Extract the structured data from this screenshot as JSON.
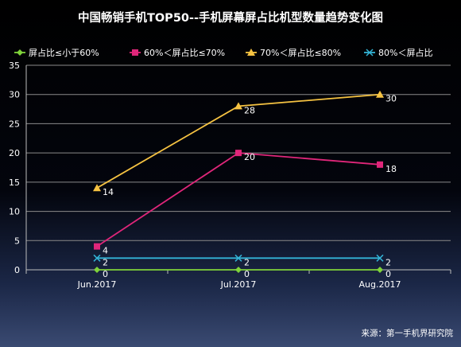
{
  "chart_data": {
    "type": "line",
    "title": "中国畅销手机TOP50--手机屏幕屏占比机型数量趋势变化图",
    "categories": [
      "Jun.2017",
      "Jul.2017",
      "Aug.2017"
    ],
    "ylim": [
      0,
      35
    ],
    "yticks": [
      0,
      5,
      10,
      15,
      20,
      25,
      30,
      35
    ],
    "grid": true,
    "legend_position": "top",
    "series": [
      {
        "name": "屏占比≤小于60%",
        "values": [
          0,
          0,
          0
        ],
        "labels": [
          "0",
          "0",
          "0"
        ],
        "color": "#7fd33a",
        "marker": "diamond"
      },
      {
        "name": "60%＜屏占比≤70%",
        "values": [
          4,
          20,
          18
        ],
        "labels": [
          "4",
          "20",
          "18"
        ],
        "color": "#e0267a",
        "marker": "square"
      },
      {
        "name": "70%＜屏占比≤80%",
        "values": [
          14,
          28,
          30
        ],
        "labels": [
          "14",
          "28",
          "30"
        ],
        "color": "#f6c342",
        "marker": "triangle"
      },
      {
        "name": "80%＜屏占比",
        "values": [
          2,
          2,
          2
        ],
        "labels": [
          "2",
          "2",
          "2"
        ],
        "color": "#33b4d6",
        "marker": "x"
      }
    ],
    "source": "来源：第一手机界研究院"
  }
}
